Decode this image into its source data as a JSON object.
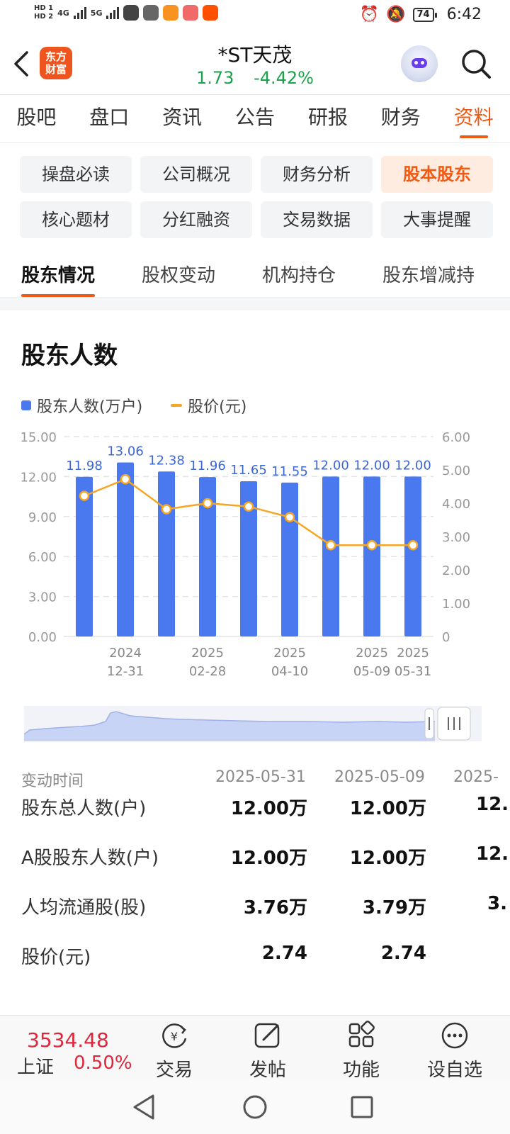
{
  "status_bar": {
    "time": "6:42",
    "battery": "74",
    "sim1": "HD 1",
    "sim2": "HD 2",
    "net1": "4G",
    "net2": "5G"
  },
  "header": {
    "logo_line1": "东方",
    "logo_line2": "财富",
    "title": "*ST天茂",
    "price": "1.73",
    "change_pct": "-4.42%",
    "quote_color": "#1aa34a"
  },
  "main_tabs": [
    {
      "label": "股吧"
    },
    {
      "label": "盘口"
    },
    {
      "label": "资讯"
    },
    {
      "label": "公告"
    },
    {
      "label": "研报"
    },
    {
      "label": "财务"
    },
    {
      "label": "资料",
      "active": true
    }
  ],
  "chips": [
    {
      "label": "操盘必读"
    },
    {
      "label": "公司概况"
    },
    {
      "label": "财务分析"
    },
    {
      "label": "股本股东",
      "active": true
    },
    {
      "label": "核心题材"
    },
    {
      "label": "分红融资"
    },
    {
      "label": "交易数据"
    },
    {
      "label": "大事提醒"
    }
  ],
  "sub_tabs": [
    {
      "label": "股东情况",
      "active": true
    },
    {
      "label": "股权变动"
    },
    {
      "label": "机构持仓"
    },
    {
      "label": "股东增减持"
    }
  ],
  "section": {
    "title": "股东人数"
  },
  "accent_color": "#ef5a15",
  "chart_data": {
    "type": "bar",
    "legend": [
      "股东人数(万户)",
      "股价(元)"
    ],
    "y_left_ticks": [
      "15.00",
      "12.00",
      "9.00",
      "6.00",
      "3.00",
      "0.00"
    ],
    "y_right_ticks": [
      "6.00",
      "5.00",
      "4.00",
      "3.00",
      "2.00",
      "1.00",
      "0"
    ],
    "ylim_left": [
      0,
      15
    ],
    "ylim_right": [
      0,
      6
    ],
    "x_tick_labels": [
      {
        "index": 1,
        "year": "2024",
        "date": "12-31"
      },
      {
        "index": 3,
        "year": "2025",
        "date": "02-28"
      },
      {
        "index": 5,
        "year": "2025",
        "date": "04-10"
      },
      {
        "index": 7,
        "year": "2025",
        "date": "05-09"
      },
      {
        "index": 8,
        "year": "2025",
        "date": "05-31"
      }
    ],
    "series": [
      {
        "name": "股东人数(万户)",
        "type": "bar",
        "color": "#4a78ef",
        "values": [
          11.98,
          13.06,
          12.38,
          11.96,
          11.65,
          11.55,
          12.0,
          12.0,
          12.0
        ],
        "labels": [
          "11.98",
          "13.06",
          "12.38",
          "11.96",
          "11.65",
          "11.55",
          "12.00",
          "12.00",
          "12.00"
        ]
      },
      {
        "name": "股价(元)",
        "type": "line",
        "color": "#f5a623",
        "values": [
          4.22,
          4.72,
          3.82,
          4.0,
          3.9,
          3.58,
          2.74,
          2.74,
          2.74
        ]
      }
    ],
    "grid": true
  },
  "table": {
    "header_label": "变动时间",
    "columns": [
      "2025-05-31",
      "2025-05-09",
      "2025-"
    ],
    "rows": [
      {
        "label": "股东总人数(户)",
        "values": [
          "12.00万",
          "12.00万",
          "12."
        ]
      },
      {
        "label": "A股股东人数(户)",
        "values": [
          "12.00万",
          "12.00万",
          "12."
        ]
      },
      {
        "label": "人均流通股(股)",
        "values": [
          "3.76万",
          "3.79万",
          "3."
        ]
      },
      {
        "label": "股价(元)",
        "values": [
          "2.74",
          "2.74",
          ""
        ]
      }
    ]
  },
  "bottom_bar": {
    "index_value": "3534.48",
    "index_name": "上证",
    "index_pct": "0.50%",
    "items": [
      {
        "label": "交易"
      },
      {
        "label": "发帖"
      },
      {
        "label": "功能"
      },
      {
        "label": "设自选"
      }
    ]
  }
}
